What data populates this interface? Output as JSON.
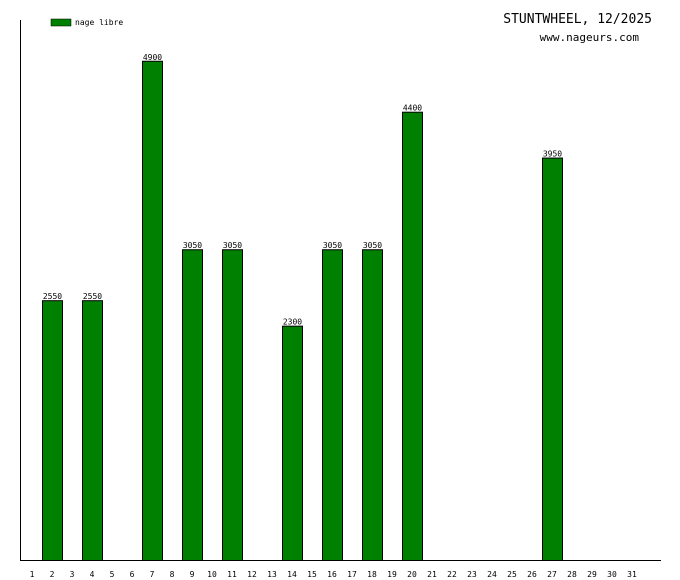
{
  "header": {
    "title": "STUNTWHEEL, 12/2025",
    "url": "www.nageurs.com"
  },
  "legend": {
    "label": "nage libre",
    "color": "#008000"
  },
  "chart_data": {
    "type": "bar",
    "title": "STUNTWHEEL, 12/2025",
    "xlabel": "",
    "ylabel": "",
    "categories": [
      "1",
      "2",
      "3",
      "4",
      "5",
      "6",
      "7",
      "8",
      "9",
      "10",
      "11",
      "12",
      "13",
      "14",
      "15",
      "16",
      "17",
      "18",
      "19",
      "20",
      "21",
      "22",
      "23",
      "24",
      "25",
      "26",
      "27",
      "28",
      "29",
      "30",
      "31"
    ],
    "series": [
      {
        "name": "nage libre",
        "color": "#008000",
        "values": [
          null,
          2550,
          null,
          2550,
          null,
          null,
          4900,
          null,
          3050,
          null,
          3050,
          null,
          null,
          2300,
          null,
          3050,
          null,
          3050,
          null,
          4400,
          null,
          null,
          null,
          null,
          null,
          null,
          3950,
          null,
          null,
          null,
          null
        ]
      }
    ],
    "ylim": [
      0,
      5300
    ],
    "grid": false,
    "legend_position": "top-left"
  }
}
